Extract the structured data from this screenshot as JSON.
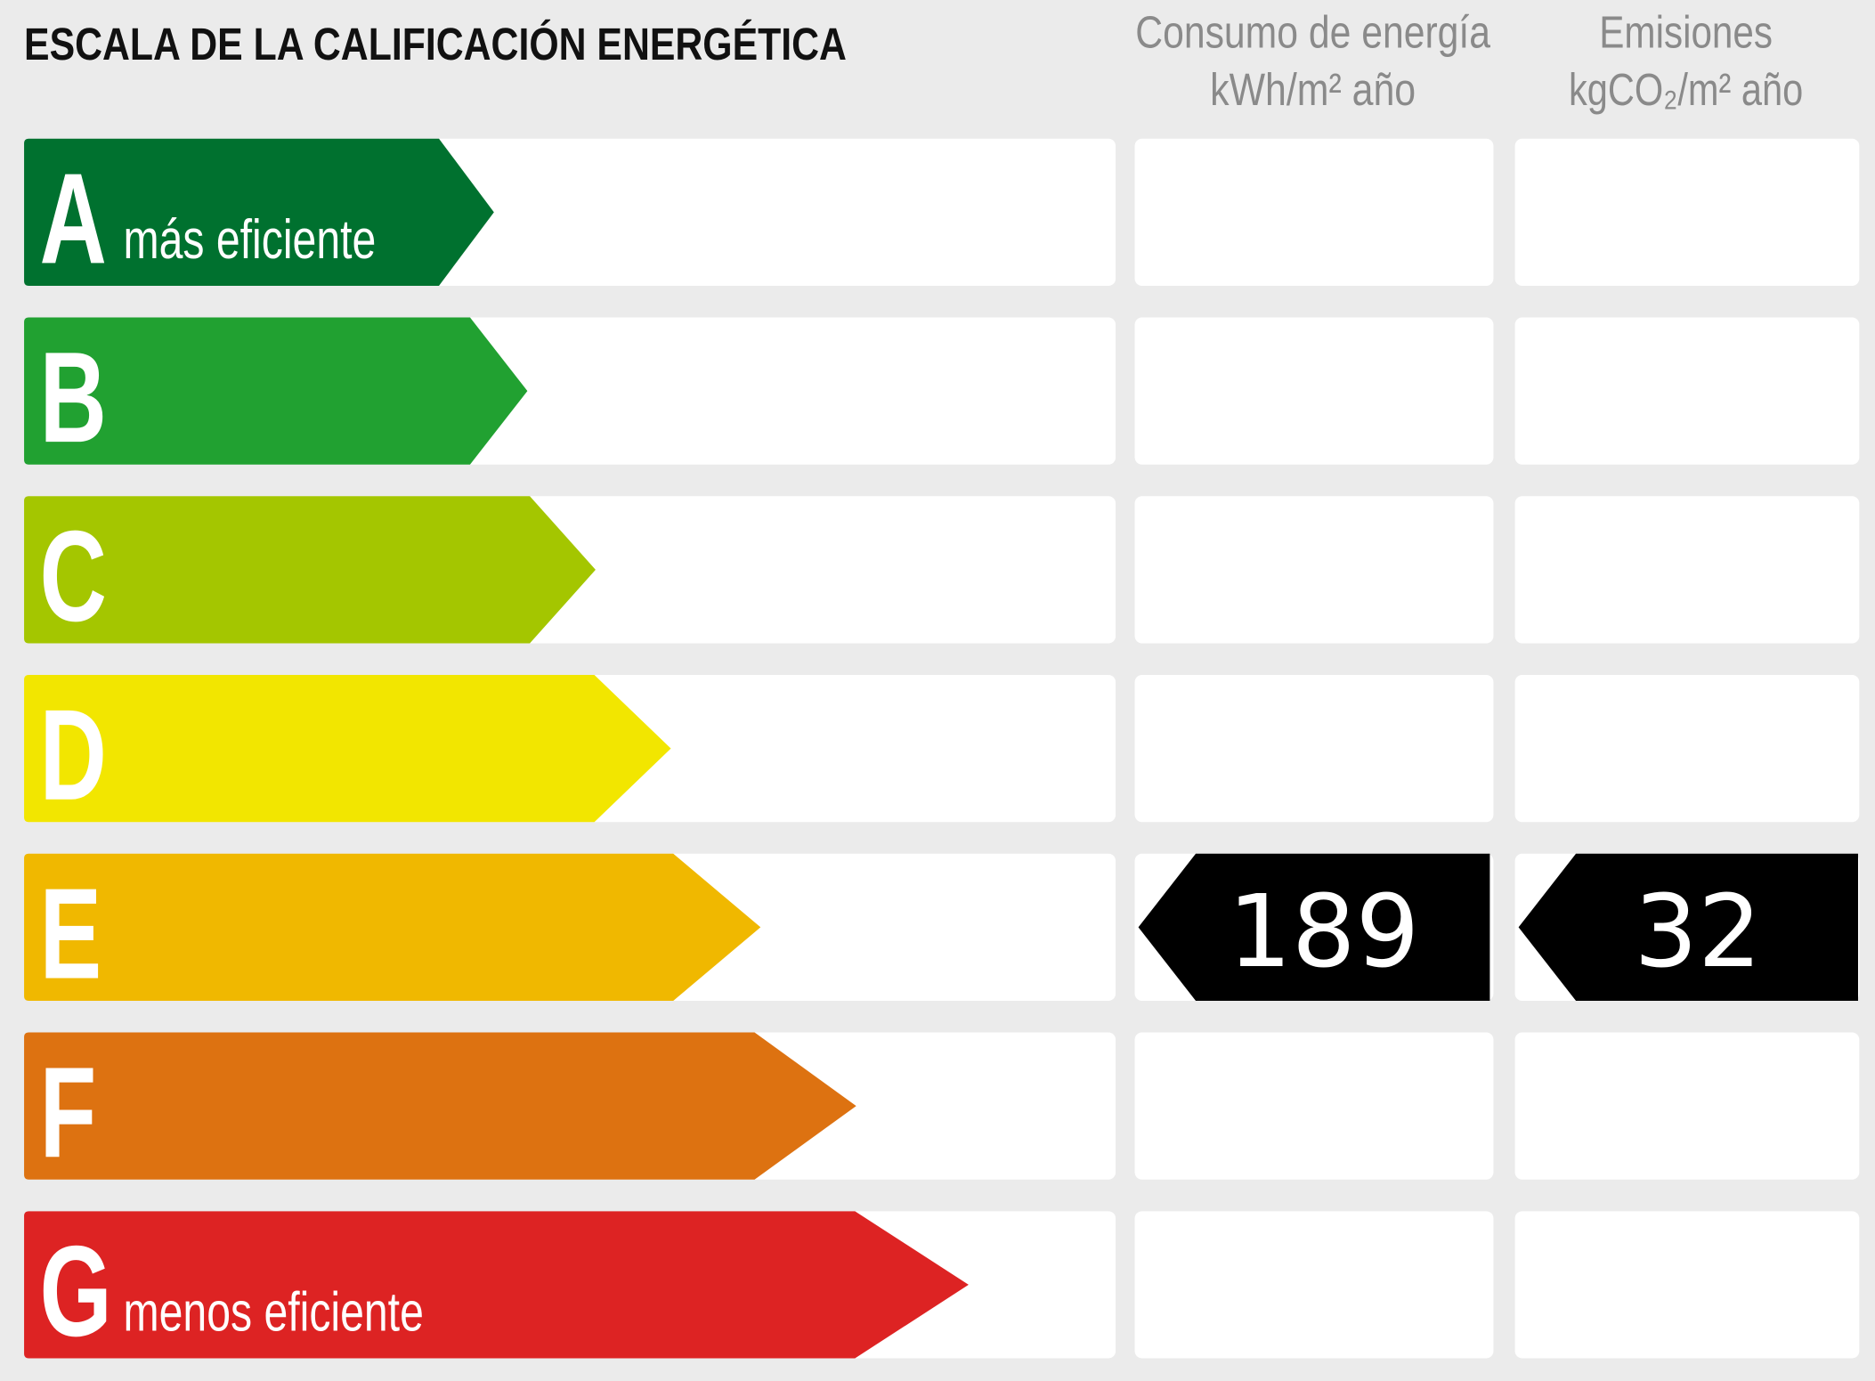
{
  "header": {
    "title": "ESCALA DE LA CALIFICACIÓN ENERGÉTICA"
  },
  "columns": [
    {
      "title": "Consumo de energía",
      "unit": "kWh/m² año"
    },
    {
      "title": "Emisiones",
      "unit": "kgCO₂/m² año"
    }
  ],
  "rows": [
    {
      "letter": "A",
      "label": "más eficiente",
      "color": "#00712f"
    },
    {
      "letter": "B",
      "color": "#21a131"
    },
    {
      "letter": "C",
      "color": "#a4c600"
    },
    {
      "letter": "D",
      "color": "#f2e600"
    },
    {
      "letter": "E",
      "color": "#f0b800",
      "consumption": 189,
      "emissions": 32
    },
    {
      "letter": "F",
      "color": "#dd7211"
    },
    {
      "letter": "G",
      "label": "menos eficiente",
      "color": "#dd2323"
    }
  ]
}
